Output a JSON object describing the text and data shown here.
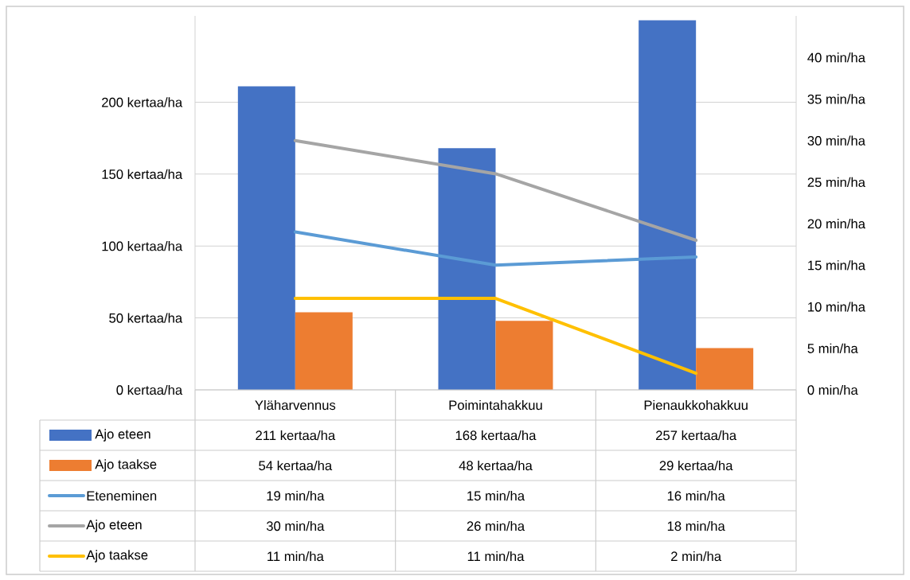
{
  "chart_data": {
    "type": "bar",
    "categories": [
      "Yläharvennus",
      "Poimintahakkuu",
      "Pienaukkohakkuu"
    ],
    "series": [
      {
        "name": "Ajo eteen",
        "color": "#4472c4",
        "values": [
          211,
          168,
          257
        ],
        "value_labels": [
          "211 kertaa/ha",
          "168 kertaa/ha",
          "257 kertaa/ha"
        ]
      },
      {
        "name": "Ajo taakse",
        "color": "#ed7d31",
        "values": [
          54,
          48,
          29
        ],
        "value_labels": [
          "54 kertaa/ha",
          "48 kertaa/ha",
          "29 kertaa/ha"
        ]
      },
      {
        "name": "Eteneminen",
        "type": "line",
        "axis": "y2",
        "color": "#5b9bd5",
        "values": [
          19,
          15,
          16
        ],
        "value_labels": [
          "19 min/ha",
          "15 min/ha",
          "16 min/ha"
        ]
      },
      {
        "name": "Ajo eteen",
        "type": "line",
        "axis": "y2",
        "color": "#a5a5a5",
        "values": [
          30,
          26,
          18
        ],
        "value_labels": [
          "30 min/ha",
          "26 min/ha",
          "18 min/ha"
        ]
      },
      {
        "name": "Ajo taakse",
        "type": "line",
        "axis": "y2",
        "color": "#ffc000",
        "values": [
          11,
          11,
          2
        ],
        "value_labels": [
          "11 min/ha",
          "11 min/ha",
          "2 min/ha"
        ]
      }
    ],
    "ylim": [
      0,
      260
    ],
    "yticks": [
      {
        "value": 0,
        "label": "0 kertaa/ha"
      },
      {
        "value": 50,
        "label": "50 kertaa/ha"
      },
      {
        "value": 100,
        "label": "100 kertaa/ha"
      },
      {
        "value": 150,
        "label": "150 kertaa/ha"
      },
      {
        "value": 200,
        "label": "200 kertaa/ha"
      }
    ],
    "y2lim": [
      0,
      45
    ],
    "y2ticks": [
      {
        "value": 0,
        "label": "0 min/ha"
      },
      {
        "value": 5,
        "label": "5 min/ha"
      },
      {
        "value": 10,
        "label": "10 min/ha"
      },
      {
        "value": 15,
        "label": "15 min/ha"
      },
      {
        "value": 20,
        "label": "20 min/ha"
      },
      {
        "value": 25,
        "label": "25 min/ha"
      },
      {
        "value": 30,
        "label": "30 min/ha"
      },
      {
        "value": 35,
        "label": "35 min/ha"
      },
      {
        "value": 40,
        "label": "40 min/ha"
      }
    ],
    "grid": "y",
    "legend": "bottom"
  }
}
